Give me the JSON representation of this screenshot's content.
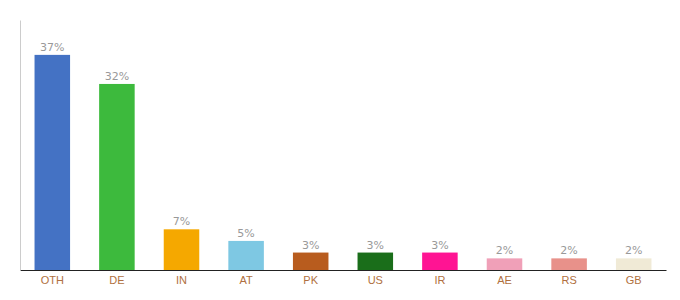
{
  "chart_data": {
    "type": "bar",
    "categories": [
      "OTH",
      "DE",
      "IN",
      "AT",
      "PK",
      "US",
      "IR",
      "AE",
      "RS",
      "GB"
    ],
    "values": [
      37,
      32,
      7,
      5,
      3,
      3,
      3,
      2,
      2,
      2
    ],
    "value_labels": [
      "37%",
      "32%",
      "7%",
      "5%",
      "3%",
      "3%",
      "3%",
      "2%",
      "2%",
      "2%"
    ],
    "colors": [
      "#4472c4",
      "#3dba3d",
      "#f5a800",
      "#7ec8e3",
      "#b85c1e",
      "#1a6e1a",
      "#ff1493",
      "#f0a0b8",
      "#e8918a",
      "#f0ead6"
    ],
    "ylim": [
      0,
      43
    ],
    "grid": false,
    "tick_labels": "x"
  }
}
